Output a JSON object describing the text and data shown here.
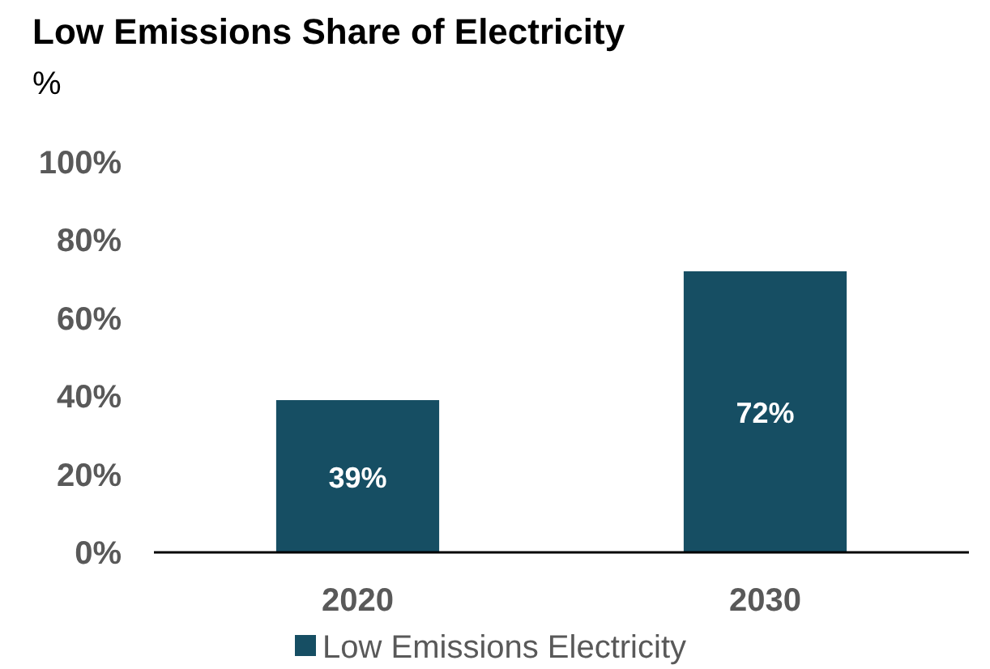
{
  "chart_data": {
    "type": "bar",
    "title": "Low Emissions Share of Electricity",
    "subtitle": "%",
    "categories": [
      "2020",
      "2030"
    ],
    "series": [
      {
        "name": "Low Emissions Electricity",
        "color": "#164e63",
        "values": [
          39,
          72
        ]
      }
    ],
    "ylim": [
      0,
      100
    ],
    "yticks": [
      {
        "value": 0,
        "label": "0%"
      },
      {
        "value": 20,
        "label": "20%"
      },
      {
        "value": 40,
        "label": "40%"
      },
      {
        "value": 60,
        "label": "60%"
      },
      {
        "value": 80,
        "label": "80%"
      },
      {
        "value": 100,
        "label": "100%"
      }
    ],
    "value_labels": [
      "39%",
      "72%"
    ],
    "grid": false,
    "legend": "bottom"
  }
}
